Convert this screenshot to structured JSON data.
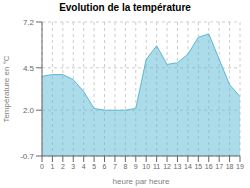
{
  "chart_data": {
    "type": "area",
    "title": "Evolution de la température",
    "xlabel": "heure par heure",
    "ylabel": "Température en °C",
    "x": [
      0,
      1,
      2,
      3,
      4,
      5,
      6,
      7,
      8,
      9,
      10,
      11,
      12,
      13,
      14,
      15,
      16,
      17,
      18,
      19
    ],
    "values": [
      4.0,
      4.1,
      4.1,
      3.8,
      3.1,
      2.1,
      2.0,
      2.0,
      2.0,
      2.1,
      5.0,
      5.8,
      4.7,
      4.8,
      5.3,
      6.3,
      6.5,
      5.0,
      3.5,
      2.8
    ],
    "color": "#5ab8d4",
    "xlim": [
      0,
      19
    ],
    "xticks": [
      0,
      1,
      2,
      3,
      4,
      5,
      6,
      7,
      8,
      9,
      10,
      11,
      12,
      13,
      14,
      15,
      16,
      17,
      18,
      19
    ],
    "ylim": [
      -0.7,
      7.2
    ],
    "yticks": [
      -0.7,
      {
        "value": 2.0,
        "label": "2.0"
      },
      4.5,
      7.2
    ],
    "grid": true
  }
}
